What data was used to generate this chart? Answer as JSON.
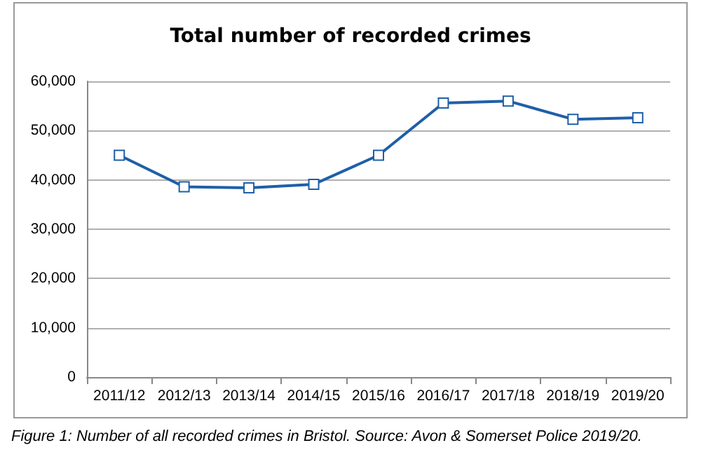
{
  "chart_data": {
    "type": "line",
    "title": "Total number of recorded crimes",
    "categories": [
      "2011/12",
      "2012/13",
      "2013/14",
      "2014/15",
      "2015/16",
      "2016/17",
      "2017/18",
      "2018/19",
      "2019/20"
    ],
    "series": [
      {
        "color": "#1f5fa8",
        "values": [
          45000,
          38600,
          38400,
          39100,
          45000,
          55600,
          56000,
          52300,
          52600
        ]
      }
    ],
    "ylim": [
      0,
      60000
    ],
    "yticks": [
      0,
      {
        "value": 10000,
        "label": "10,000"
      },
      {
        "value": 20000,
        "label": "20,000"
      },
      {
        "value": 30000,
        "label": "30,000"
      },
      {
        "value": 40000,
        "label": "40,000"
      },
      {
        "value": 50000,
        "label": "50,000"
      },
      {
        "value": 60000,
        "label": "60,000"
      }
    ],
    "grid": "y",
    "marker": "square",
    "line_style": "solid",
    "annotations": [
      "Figure 1: Number of all recorded crimes in Bristol. Source: Avon & Somerset Police 2019/20."
    ]
  }
}
